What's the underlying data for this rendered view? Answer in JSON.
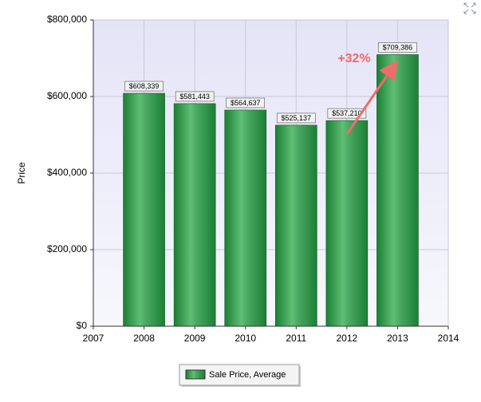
{
  "chart_data": {
    "type": "bar",
    "x": [
      2008,
      2009,
      2010,
      2011,
      2012,
      2013
    ],
    "series": [
      {
        "name": "Sale Price, Average",
        "color": "#1b7f35",
        "values": [
          608339,
          581443,
          564637,
          525137,
          537210,
          709386
        ],
        "value_labels": [
          "$608,339",
          "$581,443",
          "$564,637",
          "$525,137",
          "$537,210",
          "$709,386"
        ]
      }
    ],
    "xlim": [
      2007,
      2014
    ],
    "xticks": [
      2007,
      2008,
      2009,
      2010,
      2011,
      2012,
      2013,
      2014
    ],
    "ylim": [
      0,
      800000
    ],
    "yticks": [
      {
        "value": 0,
        "label": "$0"
      },
      {
        "value": 200000,
        "label": "$200,000"
      },
      {
        "value": 400000,
        "label": "$400,000"
      },
      {
        "value": 600000,
        "label": "$600,000"
      },
      {
        "value": 800000,
        "label": "$800,000"
      }
    ],
    "y_label": "Price",
    "annotation": "+32%",
    "grid": true,
    "legend": "bottom"
  }
}
